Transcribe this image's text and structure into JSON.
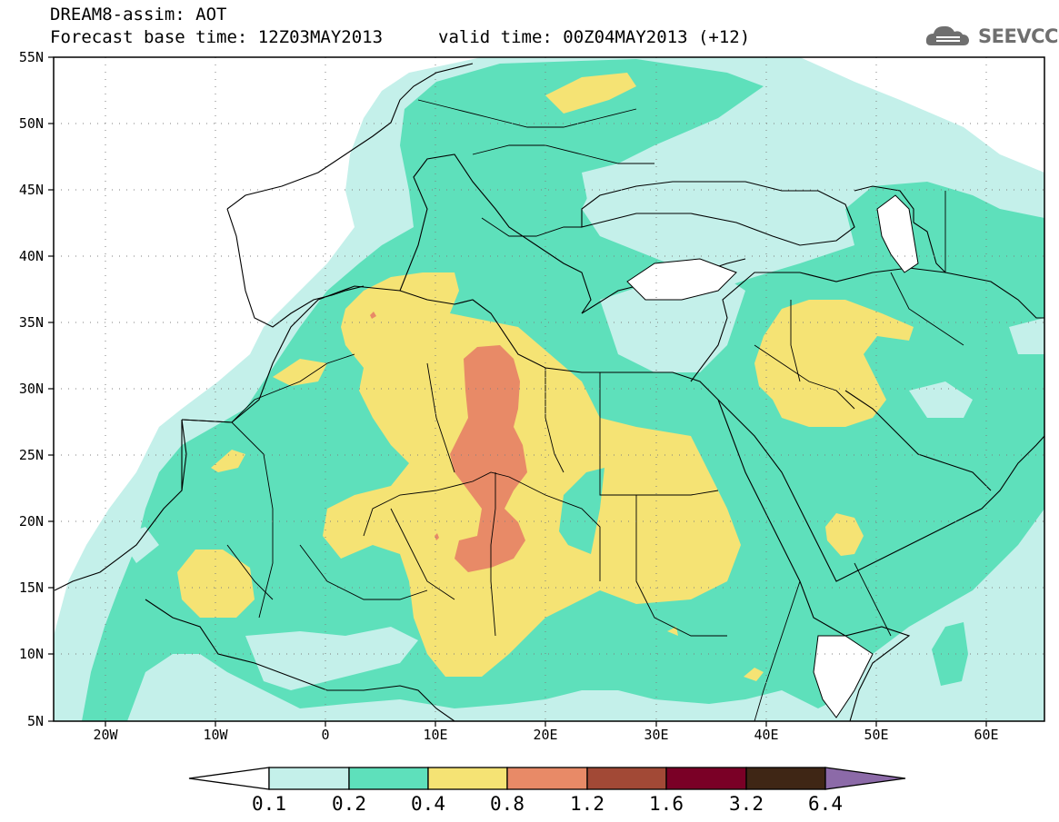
{
  "header": {
    "title_line1": "DREAM8-assim: AOT",
    "title_line2": "Forecast base time: 12Z03MAY2013",
    "valid_time": "valid time: 00Z04MAY2013 (+12)",
    "logo_text": "SEEVCCC"
  },
  "map": {
    "lon_labels": [
      "20W",
      "10W",
      "0",
      "10E",
      "20E",
      "30E",
      "40E",
      "50E",
      "60E"
    ],
    "lat_labels": [
      "55N",
      "50N",
      "45N",
      "40N",
      "35N",
      "30N",
      "25N",
      "20N",
      "15N",
      "10N",
      "5N"
    ],
    "gridlines": "dotted"
  },
  "colorbar": {
    "levels": [
      "0.1",
      "0.2",
      "0.4",
      "0.8",
      "1.2",
      "1.6",
      "3.2",
      "6.4"
    ],
    "colors": [
      "#ffffff",
      "#c4f0ea",
      "#5ee0bb",
      "#f5e374",
      "#e88a67",
      "#a24936",
      "#7a0026",
      "#3f2615",
      "#8c6aa8"
    ]
  },
  "colors": {
    "ocean_land_bg": "#ffffff",
    "aot_0_1": "#c4f0ea",
    "aot_0_2": "#5ee0bb",
    "aot_0_4": "#f5e374",
    "aot_0_8": "#e88a67"
  }
}
